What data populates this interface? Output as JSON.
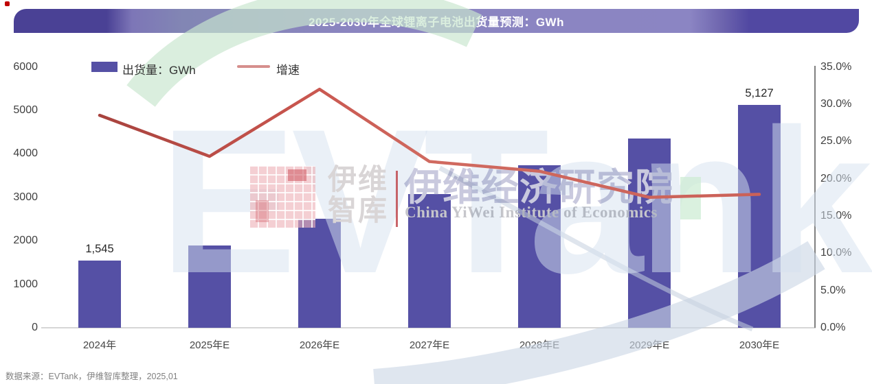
{
  "banner": {
    "title": "2025-2030年全球锂离子电池出货量预测：GWh",
    "text_color": "#FFFFFF"
  },
  "legend": {
    "bar_label": "出货量：GWh",
    "line_label": "增速",
    "bar_color": "#5550A5",
    "line_color": "#D68F8D"
  },
  "chart_data": {
    "type": "bar",
    "title": "2025-2030年全球锂离子电池出货量预测：GWh",
    "categories": [
      "2024年",
      "2025年E",
      "2026年E",
      "2027年E",
      "2028年E",
      "2029年E",
      "2030年E"
    ],
    "series": [
      {
        "name": "出货量：GWh",
        "type": "bar",
        "color": "#5550A5",
        "values": [
          1545,
          1900,
          2500,
          3070,
          3730,
          4360,
          5127
        ]
      },
      {
        "name": "增速",
        "type": "line",
        "color": "#C0504D",
        "unit": "%",
        "values": [
          28.5,
          23.0,
          32.0,
          22.3,
          21.0,
          17.5,
          17.9
        ]
      }
    ],
    "bar_labels": {
      "0": "1,545",
      "6": "5,127"
    },
    "left_axis": {
      "min": 0,
      "max": 6000,
      "step": 1000
    },
    "right_axis": {
      "min": 0,
      "max": 35,
      "step": 5,
      "suffix": "%",
      "decimals": 1
    },
    "grid": false,
    "legend_position": "top-left"
  },
  "watermark": {
    "brand": "EVTank",
    "logo_text_1": "伊维",
    "logo_text_2": "智库",
    "institute_cn": "伊维经济研究院",
    "institute_en": "China YiWei Institute of Economics"
  },
  "footer": {
    "source": "数据来源：EVTank，伊维智库整理，2025,01"
  }
}
